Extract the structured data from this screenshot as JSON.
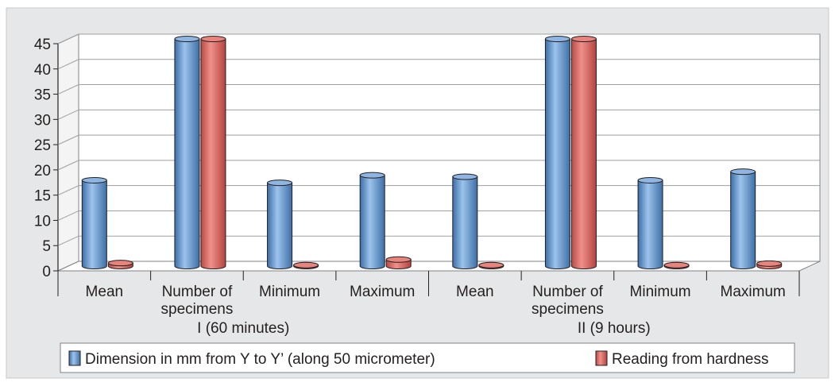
{
  "chart_data": {
    "type": "bar",
    "style": "3d-cylinder",
    "groups": [
      {
        "label": "I (60 minutes)",
        "categories": [
          "Mean",
          "Number of specimens",
          "Minimum",
          "Maximum"
        ]
      },
      {
        "label": "II (9 hours)",
        "categories": [
          "Mean",
          "Number of specimens",
          "Minimum",
          "Maximum"
        ]
      }
    ],
    "series": [
      {
        "name": "Dimension in mm from Y to Y’ (along 50 micrometer)",
        "color": "#5b8fd0",
        "values": [
          17,
          45,
          16.5,
          18,
          17.7,
          45,
          17,
          18.7
        ]
      },
      {
        "name": "Reading from hardness",
        "color": "#d9605a",
        "values": [
          0.6,
          45,
          0.2,
          1.3,
          0.2,
          45,
          0.2,
          0.5
        ]
      }
    ],
    "ylim": [
      0,
      45
    ],
    "yticks": [
      "0",
      "5",
      "10",
      "15",
      "20",
      "25",
      "30",
      "35",
      "40",
      "45"
    ],
    "grid": true,
    "legend_position": "bottom"
  },
  "colors": {
    "background": "#e6e7e8",
    "plot_wall": "#ffffff",
    "grid": "#9d9fa2"
  }
}
